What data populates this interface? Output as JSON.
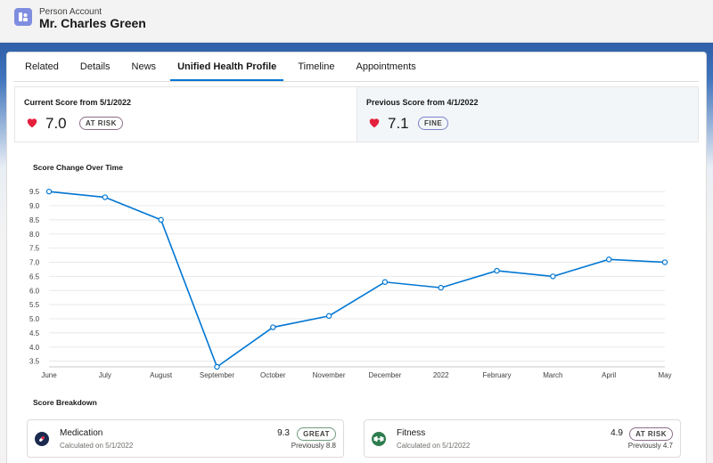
{
  "header": {
    "kicker": "Person Account",
    "title": "Mr. Charles Green",
    "icon": "person-account-icon",
    "icon_color": "#7f8de1"
  },
  "tabs": [
    {
      "label": "Related",
      "active": false
    },
    {
      "label": "Details",
      "active": false
    },
    {
      "label": "News",
      "active": false
    },
    {
      "label": "Unified Health Profile",
      "active": true
    },
    {
      "label": "Timeline",
      "active": false
    },
    {
      "label": "Appointments",
      "active": false
    }
  ],
  "current_score": {
    "title": "Current Score from 5/1/2022",
    "value": "7.0",
    "badge": "AT RISK"
  },
  "previous_score": {
    "title": "Previous Score from 4/1/2022",
    "value": "7.1",
    "badge": "FINE"
  },
  "chart_data": {
    "type": "line",
    "title": "Score Change Over Time",
    "categories": [
      "June",
      "July",
      "August",
      "September",
      "October",
      "November",
      "December",
      "2022",
      "February",
      "March",
      "April",
      "May"
    ],
    "series": [
      {
        "values": [
          9.5,
          9.3,
          8.5,
          3.3,
          4.7,
          5.1,
          6.3,
          6.1,
          6.7,
          6.5,
          7.1,
          7.0
        ]
      }
    ],
    "yticks": [
      "3.5",
      "4.0",
      "4.5",
      "5.0",
      "5.5",
      "6.0",
      "6.5",
      "7.0",
      "7.5",
      "8.0",
      "8.5",
      "9.0",
      "9.5"
    ],
    "ylim": [
      3.3,
      9.6
    ],
    "grid": true,
    "line_color": "#0176d3"
  },
  "breakdown": {
    "title": "Score Breakdown",
    "items": [
      {
        "name": "Medication",
        "calculated": "Calculated on 5/1/2022",
        "value": "9.3",
        "badge": "GREAT",
        "previous": "Previously 8.8",
        "icon": "medication-icon",
        "icon_color": "#1b2a4e"
      },
      {
        "name": "Fitness",
        "calculated": "Calculated on 5/1/2022",
        "value": "4.9",
        "badge": "AT RISK",
        "previous": "Previously 4.7",
        "icon": "dumbbell-icon",
        "icon_color": "#2e7d4f"
      }
    ]
  }
}
